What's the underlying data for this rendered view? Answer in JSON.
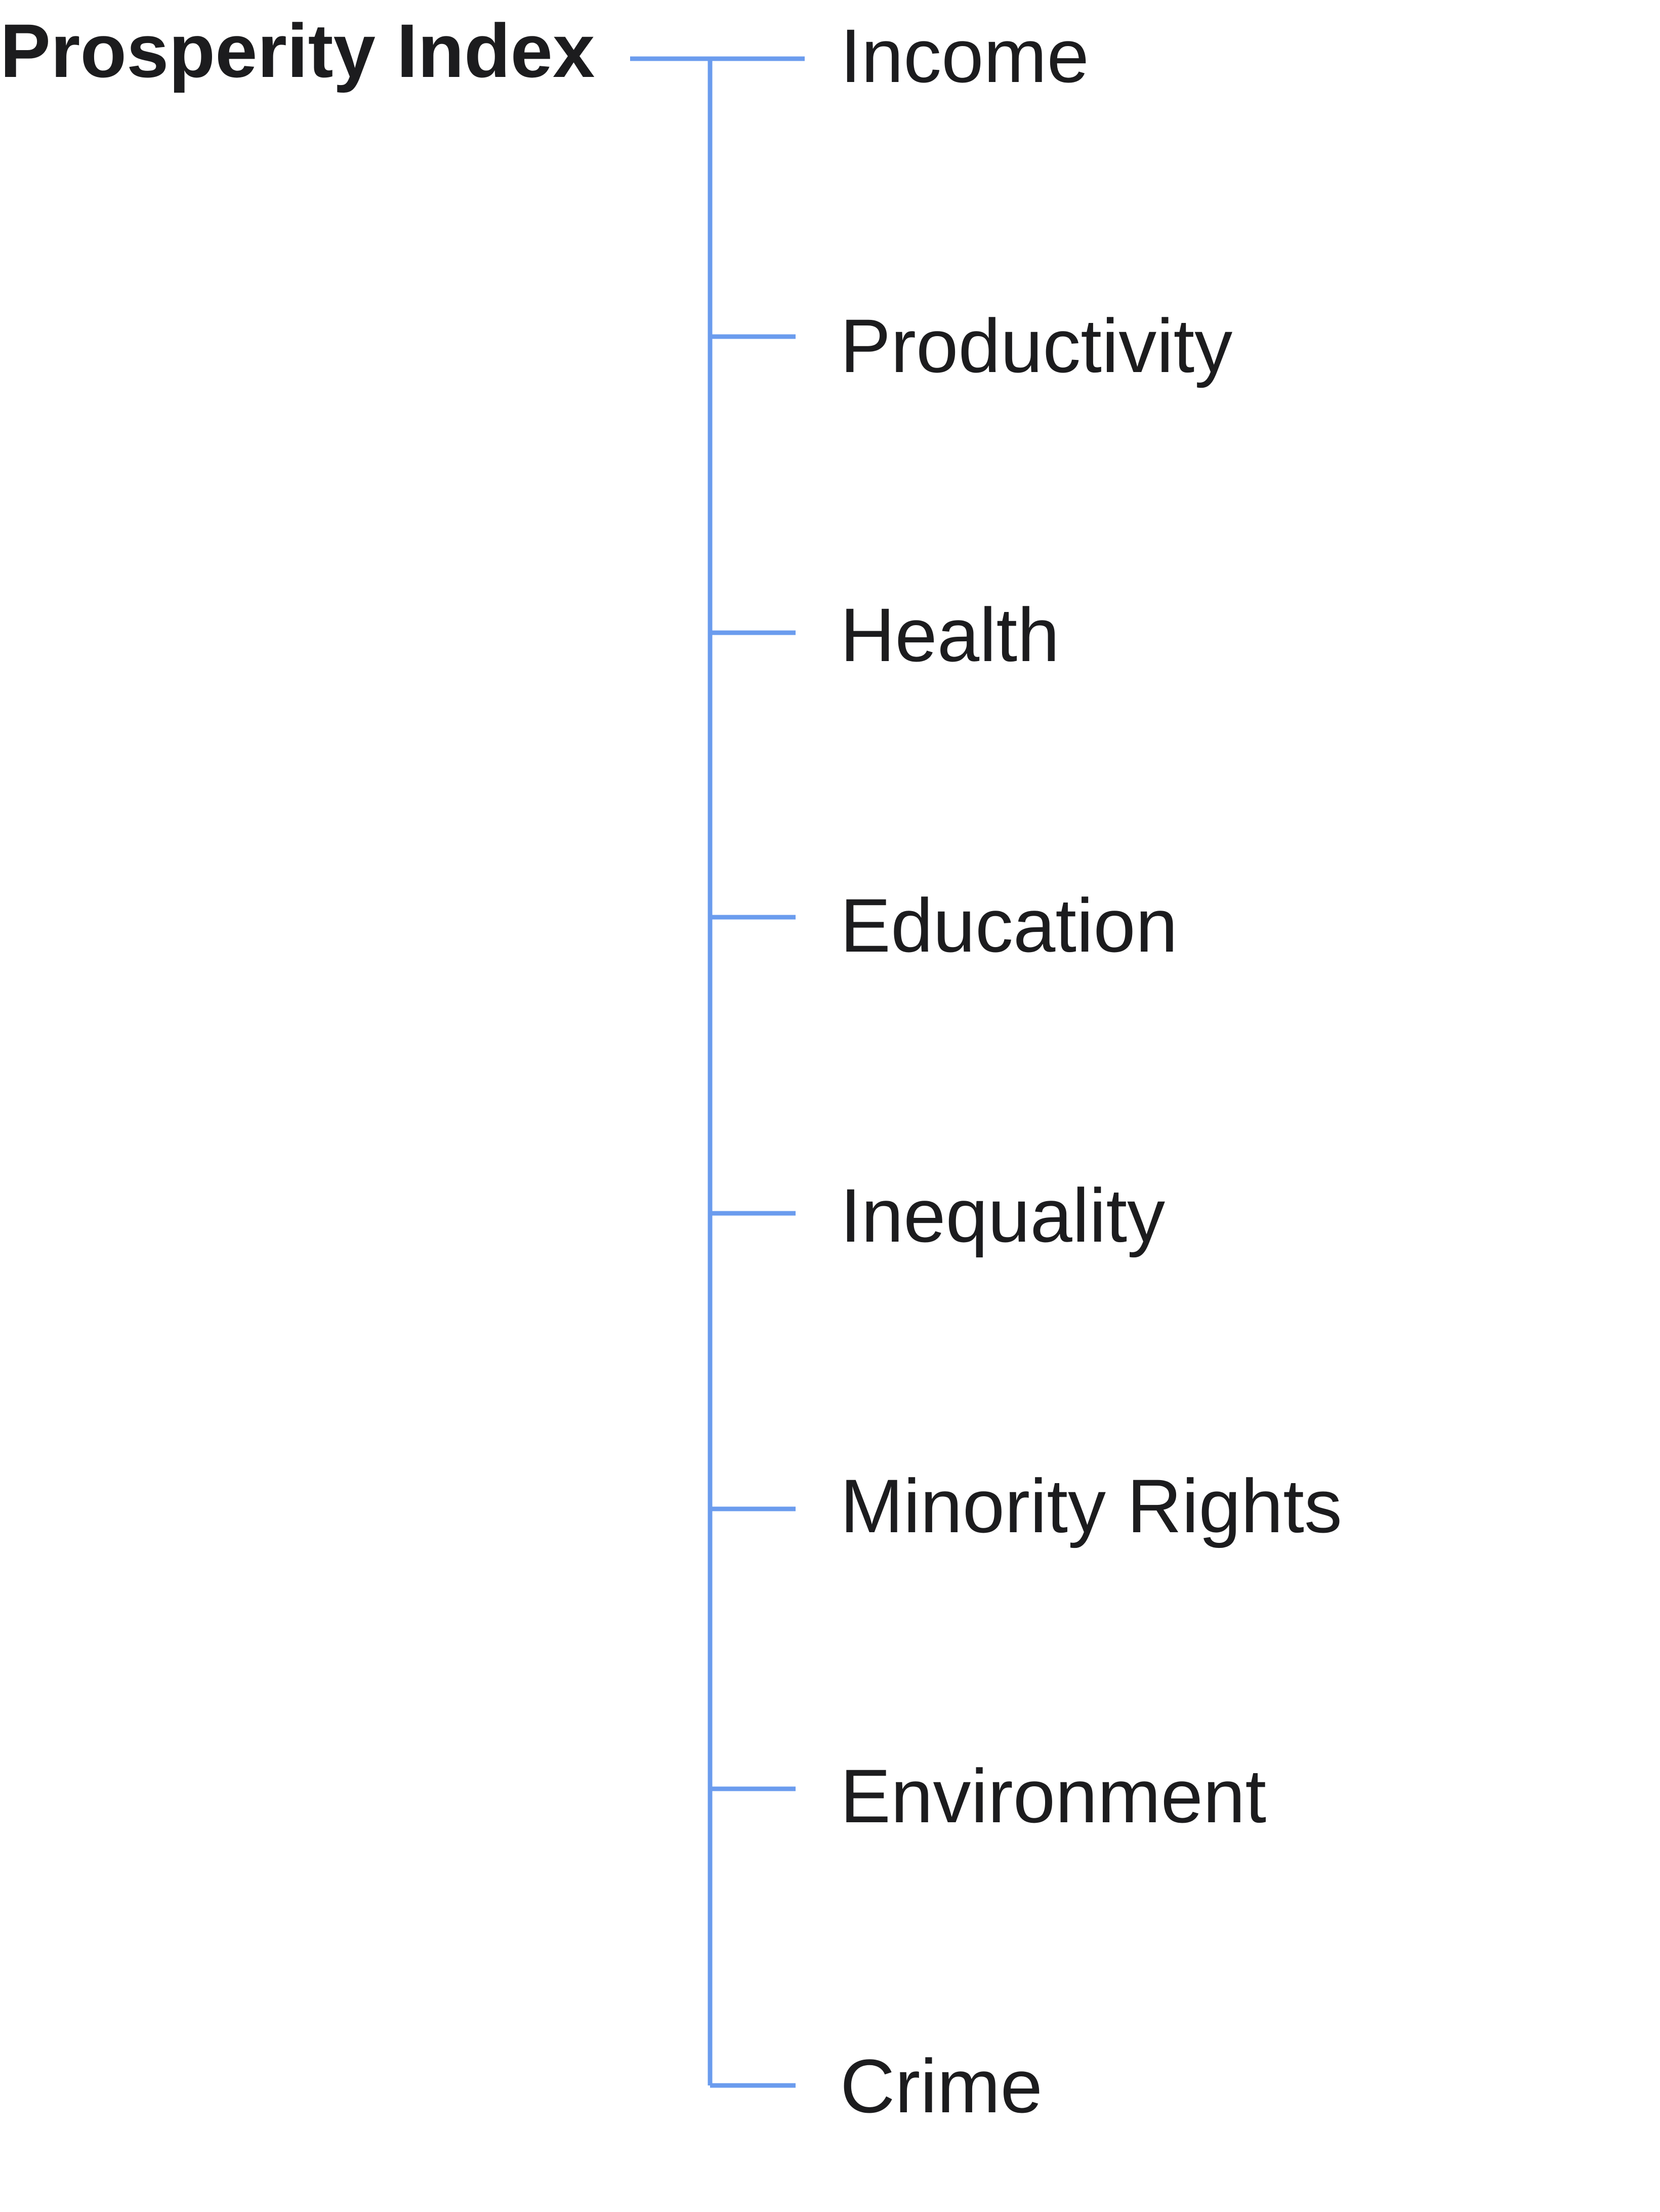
{
  "diagram": {
    "root": {
      "label": "Prosperity Index"
    },
    "children": [
      {
        "label": "Income"
      },
      {
        "label": "Productivity"
      },
      {
        "label": "Health"
      },
      {
        "label": "Education"
      },
      {
        "label": "Inequality"
      },
      {
        "label": "Minority Rights"
      },
      {
        "label": "Environment"
      },
      {
        "label": "Crime"
      }
    ],
    "colors": {
      "connector": "#6b9cee",
      "text": "#1c1c1e"
    }
  }
}
